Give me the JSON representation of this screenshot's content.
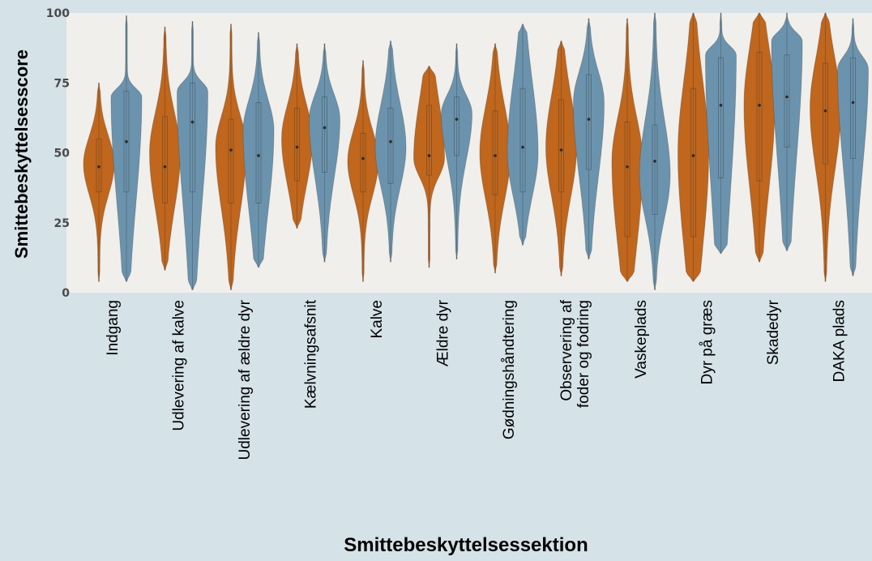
{
  "chart_data": {
    "type": "violin",
    "title": "",
    "xlabel": "Smittebeskyttelsessektion",
    "ylabel": "Smittebeskyttelsesscore",
    "ylim": [
      0,
      100
    ],
    "yticks": [
      "0",
      "25",
      "50",
      "75",
      "100"
    ],
    "grid": false,
    "legend": "none",
    "colors": {
      "orange": "#c0661d",
      "blue": "#6b93ad",
      "plot_bg": "#f1efeb",
      "page_bg": "#d5e2e8"
    },
    "categories": [
      [
        "Indgang"
      ],
      [
        "Udlevering af kalve"
      ],
      [
        "Udlevering af ældre dyr"
      ],
      [
        "Kælvningsafsnit"
      ],
      [
        "Kalve"
      ],
      [
        "Ældre dyr"
      ],
      [
        "Gødningshåndtering"
      ],
      [
        "Observering af",
        "foder og fodring"
      ],
      [
        "Vaskeplads"
      ],
      [
        "Dyr på græs"
      ],
      [
        "Skadedyr"
      ],
      [
        "DAKA plads"
      ]
    ],
    "series": [
      {
        "color": "#c0661d",
        "min": [
          4,
          8,
          1,
          23,
          4,
          9,
          7,
          6,
          4,
          4,
          11,
          4
        ],
        "q1": [
          36,
          32,
          32,
          40,
          36,
          42,
          35,
          36,
          20,
          20,
          40,
          46
        ],
        "median": [
          45,
          45,
          51,
          52,
          48,
          49,
          49,
          51,
          45,
          49,
          67,
          65
        ],
        "q3": [
          55,
          63,
          62,
          66,
          57,
          67,
          65,
          69,
          61,
          73,
          86,
          82
        ],
        "max": [
          75,
          95,
          96,
          89,
          83,
          81,
          89,
          90,
          98,
          100,
          100,
          100
        ],
        "peak": [
          46,
          50,
          52,
          55,
          47,
          48,
          50,
          52,
          47,
          50,
          67,
          66
        ]
      },
      {
        "color": "#6b93ad",
        "min": [
          4,
          1,
          9,
          11,
          11,
          12,
          17,
          12,
          1,
          14,
          15,
          6
        ],
        "q1": [
          36,
          36,
          32,
          43,
          39,
          49,
          36,
          44,
          28,
          41,
          52,
          48
        ],
        "median": [
          54,
          61,
          49,
          59,
          54,
          62,
          52,
          62,
          47,
          67,
          70,
          68
        ],
        "q3": [
          72,
          75,
          68,
          70,
          66,
          70,
          73,
          78,
          60,
          84,
          85,
          84
        ],
        "max": [
          99,
          97,
          93,
          89,
          90,
          89,
          96,
          98,
          100,
          100,
          100,
          98
        ],
        "peak": [
          70,
          72,
          58,
          62,
          52,
          64,
          50,
          68,
          42,
          85,
          90,
          80
        ]
      }
    ]
  }
}
